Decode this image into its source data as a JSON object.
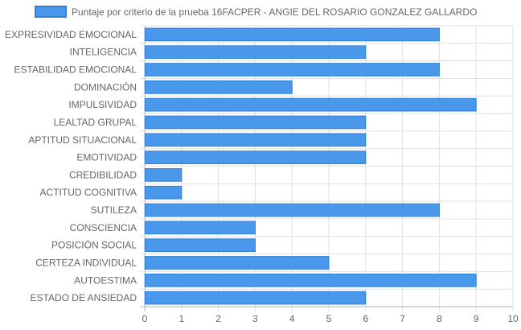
{
  "chart_data": {
    "type": "bar",
    "orientation": "horizontal",
    "legend": {
      "position": "top",
      "label": "Puntaje por criterio de la prueba 16FACPER - ANGIE DEL ROSARIO GONZALEZ GALLARDO"
    },
    "categories": [
      "EXPRESIVIDAD EMOCIONAL",
      "INTELIGENCIA",
      "ESTABILIDAD EMOCIONAL",
      "DOMINACIÓN",
      "IMPULSIVIDAD",
      "LEALTAD GRUPAL",
      "APTITUD SITUACIONAL",
      "EMOTIVIDAD",
      "CREDIBILIDAD",
      "ACTITUD COGNITIVA",
      "SUTILEZA",
      "CONSCIENCIA",
      "POSICIÓN SOCIAL",
      "CERTEZA INDIVIDUAL",
      "AUTOESTIMA",
      "ESTADO DE ANSIEDAD"
    ],
    "series": [
      {
        "name": "Puntaje por criterio de la prueba 16FACPER - ANGIE DEL ROSARIO GONZALEZ GALLARDO",
        "values": [
          8,
          6,
          8,
          4,
          9,
          6,
          6,
          6,
          1,
          1,
          8,
          3,
          3,
          5,
          9,
          6
        ]
      }
    ],
    "xlim": [
      0,
      10
    ],
    "xticks": [
      "0",
      "1",
      "2",
      "3",
      "4",
      "5",
      "6",
      "7",
      "8",
      "9",
      "10"
    ],
    "grid": true,
    "colors": {
      "bar_fill": "#4a98ec",
      "bar_stroke": "#2f7fd6",
      "grid": "#e0e0e0",
      "axis": "#b0b0b0",
      "text": "#666666"
    }
  }
}
